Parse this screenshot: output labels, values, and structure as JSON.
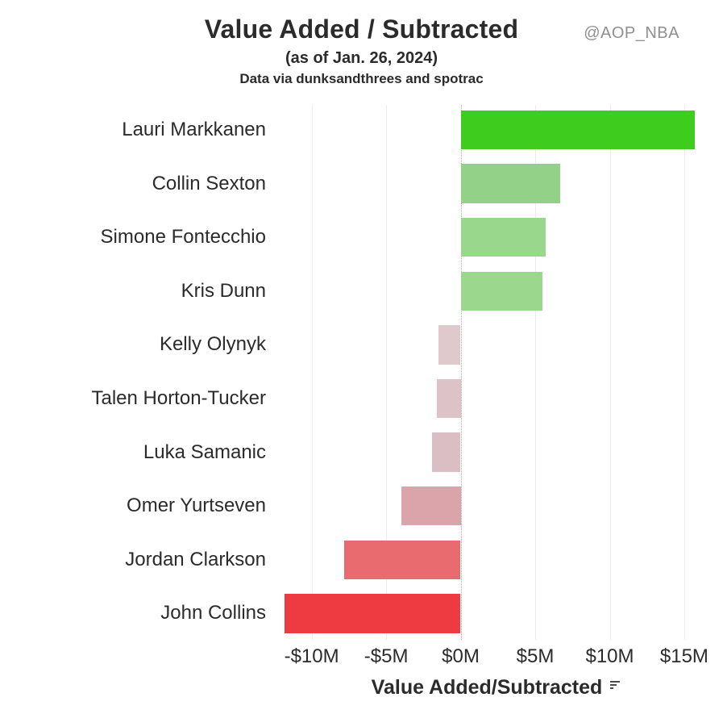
{
  "chart_data": {
    "type": "bar",
    "orientation": "horizontal",
    "title": "Value Added / Subtracted",
    "subtitle": "(as of Jan. 26, 2024)",
    "credit": "Data via dunksandthrees and spotrac",
    "watermark": "@AOP_NBA",
    "xlabel": "Value Added/Subtracted",
    "unit": "millions USD",
    "xlim": [
      -12.9,
      17.6
    ],
    "grid": true,
    "zero_line_style": "dotted",
    "x_ticks": [
      {
        "value": -10,
        "label": "-$10M"
      },
      {
        "value": -5,
        "label": "-$5M"
      },
      {
        "value": 0,
        "label": "$0M"
      },
      {
        "value": 5,
        "label": "$5M"
      },
      {
        "value": 10,
        "label": "$10M"
      },
      {
        "value": 15,
        "label": "$15M"
      }
    ],
    "categories": [
      "Lauri Markkanen",
      "Collin Sexton",
      "Simone Fontecchio",
      "Kris Dunn",
      "Kelly Olynyk",
      "Talen Horton-Tucker",
      "Luka Samanic",
      "Omer Yurtseven",
      "Jordan Clarkson",
      "John Collins"
    ],
    "values": [
      15.7,
      6.7,
      5.7,
      5.5,
      -1.5,
      -1.6,
      -1.9,
      -4.0,
      -7.8,
      -11.8
    ],
    "series": [
      {
        "name": "Lauri Markkanen",
        "value": 15.7,
        "color": "#3ecd1e"
      },
      {
        "name": "Collin Sexton",
        "value": 6.7,
        "color": "#92d187"
      },
      {
        "name": "Simone Fontecchio",
        "value": 5.7,
        "color": "#99d78c"
      },
      {
        "name": "Kris Dunn",
        "value": 5.5,
        "color": "#9bd88e"
      },
      {
        "name": "Kelly Olynyk",
        "value": -1.5,
        "color": "#e0c9cc"
      },
      {
        "name": "Talen Horton-Tucker",
        "value": -1.6,
        "color": "#ddc3c7"
      },
      {
        "name": "Luka Samanic",
        "value": -1.9,
        "color": "#dbbec3"
      },
      {
        "name": "Omer Yurtseven",
        "value": -4.0,
        "color": "#dba4ab"
      },
      {
        "name": "Jordan Clarkson",
        "value": -7.8,
        "color": "#e96b70"
      },
      {
        "name": "John Collins",
        "value": -11.8,
        "color": "#ee3a41"
      }
    ],
    "colors": {
      "text": "#2b2b2b",
      "watermark": "#8f8f8f",
      "gridline": "#ececec",
      "zero_line": "#b5aea8"
    }
  }
}
